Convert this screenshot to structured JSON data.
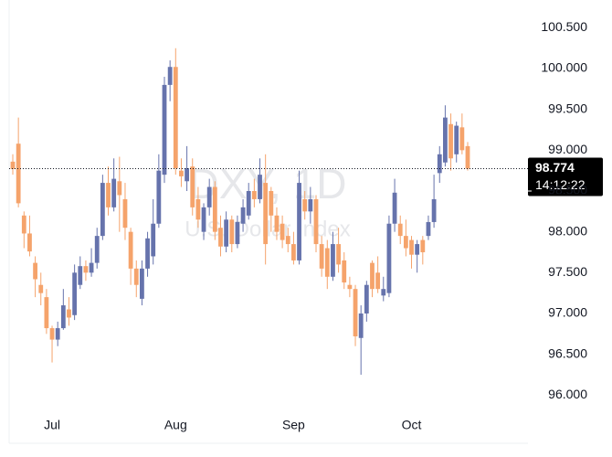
{
  "chart_data": {
    "type": "candlestick",
    "watermark_title": "DXY, 1D",
    "watermark_subtitle": "U.S. Dollar Index",
    "categories": [
      null,
      null,
      null,
      null,
      null,
      null,
      null,
      "Jul",
      null,
      null,
      null,
      null,
      null,
      null,
      null,
      null,
      null,
      null,
      null,
      null,
      null,
      null,
      null,
      null,
      null,
      null,
      null,
      null,
      null,
      "Aug",
      null,
      null,
      null,
      null,
      null,
      null,
      null,
      null,
      null,
      null,
      null,
      null,
      null,
      null,
      null,
      null,
      null,
      null,
      null,
      null,
      "Sep",
      null,
      null,
      null,
      null,
      null,
      null,
      null,
      null,
      null,
      null,
      null,
      null,
      null,
      null,
      null,
      null,
      null,
      null,
      null,
      null,
      "Oct",
      null,
      null,
      null,
      null,
      null,
      null,
      null,
      null,
      null,
      null
    ],
    "open": [
      98.86,
      99.08,
      98.2,
      97.98,
      97.62,
      97.35,
      97.2,
      96.82,
      96.68,
      96.82,
      97.05,
      96.98,
      97.35,
      97.58,
      97.5,
      97.62,
      97.95,
      98.6,
      98.3,
      98.62,
      98.4,
      98.0,
      97.55,
      97.18,
      97.55,
      97.7,
      98.1,
      98.7,
      99.8,
      100.02,
      98.75,
      98.62,
      98.8,
      98.4,
      98.0,
      98.3,
      98.55,
      98.05,
      97.82,
      98.15,
      97.85,
      98.1,
      98.2,
      98.5,
      98.4,
      98.6,
      98.5,
      98.2,
      98.1,
      97.95,
      97.85,
      97.65,
      98.4,
      98.25,
      98.4,
      97.85,
      97.8,
      97.45,
      97.85,
      97.65,
      97.35,
      97.3,
      96.7,
      97.0,
      97.62,
      97.5,
      97.22,
      97.25,
      98.1,
      98.1,
      97.95,
      97.9,
      97.72,
      97.9,
      97.95,
      98.12,
      98.72,
      98.85,
      99.32,
      98.95,
      99.28,
      99.05
    ],
    "high": [
      98.95,
      99.4,
      98.25,
      98.2,
      97.7,
      97.5,
      97.3,
      96.85,
      96.9,
      97.3,
      97.2,
      97.6,
      97.7,
      97.65,
      97.8,
      98.05,
      98.7,
      98.8,
      98.9,
      98.92,
      98.6,
      98.05,
      97.65,
      97.65,
      98.0,
      98.4,
      98.95,
      99.9,
      100.1,
      100.25,
      98.9,
      99.05,
      98.9,
      98.55,
      98.35,
      98.65,
      98.62,
      98.2,
      98.25,
      98.2,
      98.2,
      98.4,
      98.6,
      98.65,
      98.9,
      98.95,
      98.55,
      98.3,
      98.2,
      98.05,
      98.0,
      98.75,
      98.5,
      98.55,
      98.45,
      97.95,
      97.9,
      98.0,
      98.05,
      97.75,
      97.45,
      97.35,
      97.1,
      97.4,
      97.65,
      97.7,
      97.45,
      98.2,
      98.65,
      98.2,
      98.15,
      97.95,
      97.9,
      97.95,
      98.2,
      98.7,
      99.05,
      99.55,
      99.45,
      99.35,
      99.45,
      99.1
    ],
    "low": [
      98.7,
      98.3,
      97.8,
      97.7,
      97.2,
      97.1,
      96.75,
      96.4,
      96.6,
      96.8,
      96.85,
      96.92,
      97.3,
      97.4,
      97.45,
      97.55,
      97.9,
      98.2,
      98.25,
      98.0,
      97.9,
      97.35,
      97.2,
      97.1,
      97.45,
      97.6,
      98.05,
      98.6,
      99.6,
      98.7,
      98.55,
      98.5,
      98.2,
      98.05,
      97.9,
      98.2,
      97.9,
      97.7,
      97.75,
      97.75,
      97.8,
      98.0,
      98.15,
      98.3,
      98.35,
      97.6,
      98.0,
      97.9,
      97.8,
      97.75,
      97.6,
      97.6,
      98.15,
      98.1,
      97.75,
      97.45,
      97.3,
      97.4,
      97.5,
      97.3,
      97.2,
      96.6,
      96.25,
      96.9,
      97.2,
      97.25,
      97.15,
      97.2,
      98.0,
      97.85,
      97.7,
      97.55,
      97.5,
      97.6,
      97.9,
      98.05,
      98.6,
      98.8,
      98.75,
      98.85,
      98.95,
      98.75
    ],
    "close": [
      98.77,
      98.35,
      97.98,
      97.76,
      97.42,
      97.25,
      96.82,
      96.68,
      96.82,
      97.1,
      96.95,
      97.5,
      97.58,
      97.5,
      97.62,
      97.95,
      98.6,
      98.3,
      98.65,
      98.45,
      98.05,
      97.55,
      97.35,
      97.55,
      97.92,
      98.1,
      98.75,
      99.8,
      100.02,
      98.78,
      98.68,
      98.78,
      98.3,
      98.15,
      98.3,
      98.55,
      98.0,
      97.82,
      98.15,
      97.85,
      98.12,
      98.3,
      98.5,
      98.4,
      98.7,
      97.85,
      98.2,
      98.0,
      97.9,
      97.85,
      97.65,
      98.6,
      98.25,
      98.4,
      97.85,
      97.55,
      97.45,
      97.85,
      97.6,
      97.38,
      97.3,
      96.72,
      97.0,
      97.35,
      97.3,
      97.3,
      97.3,
      98.1,
      98.48,
      97.95,
      97.8,
      97.72,
      97.85,
      97.75,
      98.12,
      98.4,
      98.95,
      99.4,
      98.9,
      99.3,
      99.0,
      98.774
    ],
    "up_color": "#6673ac",
    "down_color": "#f5a36b",
    "ylim": [
      95.41,
      100.84
    ],
    "yticks": [
      {
        "value": 96,
        "label": "96.000"
      },
      {
        "value": 96.5,
        "label": "96.500"
      },
      {
        "value": 97,
        "label": "97.000"
      },
      {
        "value": 97.5,
        "label": "97.500"
      },
      {
        "value": 98,
        "label": "98.000"
      },
      {
        "value": 98.5,
        "label": "98.500"
      },
      {
        "value": 99,
        "label": "99.000"
      },
      {
        "value": 99.5,
        "label": "99.500"
      },
      {
        "value": 100,
        "label": "100.000"
      },
      {
        "value": 100.5,
        "label": "100.500"
      }
    ],
    "last_price": 98.774,
    "countdown": "14:12:22"
  }
}
